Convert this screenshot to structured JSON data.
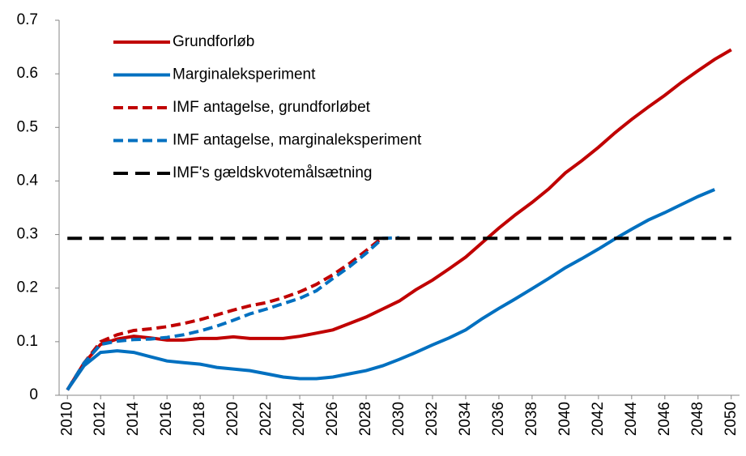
{
  "chart_data": {
    "type": "line",
    "x": [
      2010,
      2011,
      2012,
      2013,
      2014,
      2015,
      2016,
      2017,
      2018,
      2019,
      2020,
      2021,
      2022,
      2023,
      2024,
      2025,
      2026,
      2027,
      2028,
      2029,
      2030,
      2031,
      2032,
      2033,
      2034,
      2035,
      2036,
      2037,
      2038,
      2039,
      2040,
      2041,
      2042,
      2043,
      2044,
      2045,
      2046,
      2047,
      2048,
      2049,
      2050
    ],
    "series": [
      {
        "name": "Grundforløb",
        "color": "#c00000",
        "dashed": false,
        "values": [
          0.01,
          0.06,
          0.095,
          0.105,
          0.11,
          0.107,
          0.103,
          0.103,
          0.106,
          0.106,
          0.109,
          0.106,
          0.106,
          0.106,
          0.11,
          0.116,
          0.122,
          0.134,
          0.146,
          0.161,
          0.176,
          0.197,
          0.215,
          0.236,
          0.258,
          0.285,
          0.312,
          0.337,
          0.36,
          0.385,
          0.415,
          0.438,
          0.463,
          0.49,
          0.515,
          0.538,
          0.56,
          0.584,
          0.606,
          0.627,
          0.645
        ]
      },
      {
        "name": "Marginaleksperiment",
        "color": "#0070c0",
        "dashed": false,
        "values": [
          0.01,
          0.055,
          0.08,
          0.083,
          0.08,
          0.072,
          0.064,
          0.061,
          0.058,
          0.052,
          0.049,
          0.046,
          0.04,
          0.034,
          0.031,
          0.031,
          0.034,
          0.04,
          0.046,
          0.055,
          0.067,
          0.08,
          0.094,
          0.107,
          0.122,
          0.143,
          0.162,
          0.18,
          0.199,
          0.218,
          0.238,
          0.255,
          0.273,
          0.292,
          0.31,
          0.327,
          0.341,
          0.356,
          0.371,
          0.384,
          null
        ]
      },
      {
        "name": "IMF antagelse, grundforløbet",
        "color": "#c00000",
        "dashed": true,
        "values": [
          0.01,
          0.06,
          0.1,
          0.113,
          0.121,
          0.124,
          0.128,
          0.134,
          0.141,
          0.15,
          0.159,
          0.167,
          0.173,
          0.182,
          0.193,
          0.207,
          0.225,
          0.246,
          0.27,
          0.295,
          null,
          null,
          null,
          null,
          null,
          null,
          null,
          null,
          null,
          null,
          null,
          null,
          null,
          null,
          null,
          null,
          null,
          null,
          null,
          null,
          null
        ]
      },
      {
        "name": "IMF antagelse, marginaleksperiment",
        "color": "#0070c0",
        "dashed": true,
        "values": [
          0.01,
          0.06,
          0.095,
          0.101,
          0.104,
          0.105,
          0.108,
          0.113,
          0.12,
          0.129,
          0.14,
          0.152,
          0.161,
          0.171,
          0.181,
          0.195,
          0.218,
          0.24,
          0.265,
          0.293,
          0.294,
          null,
          null,
          null,
          null,
          null,
          null,
          null,
          null,
          null,
          null,
          null,
          null,
          null,
          null,
          null,
          null,
          null,
          null,
          null,
          null
        ]
      },
      {
        "name": "IMF's gældskvotemålsætning",
        "color": "#000000",
        "dashed": true,
        "values": [
          0.293,
          0.293,
          0.293,
          0.293,
          0.293,
          0.293,
          0.293,
          0.293,
          0.293,
          0.293,
          0.293,
          0.293,
          0.293,
          0.293,
          0.293,
          0.293,
          0.293,
          0.293,
          0.293,
          0.293,
          0.293,
          0.293,
          0.293,
          0.293,
          0.293,
          0.293,
          0.293,
          0.293,
          0.293,
          0.293,
          0.293,
          0.293,
          0.293,
          0.293,
          0.293,
          0.293,
          0.293,
          0.293,
          0.293,
          0.293,
          0.293
        ]
      }
    ],
    "xlim": [
      2009.5,
      2050.5
    ],
    "xticks": [
      2010,
      2012,
      2014,
      2016,
      2018,
      2020,
      2022,
      2024,
      2026,
      2028,
      2030,
      2032,
      2034,
      2036,
      2038,
      2040,
      2042,
      2044,
      2046,
      2048,
      2050
    ],
    "ylim": [
      0,
      0.7
    ],
    "yticks": [
      0,
      0.1,
      0.2,
      0.3,
      0.4,
      0.5,
      0.6,
      0.7
    ],
    "grid": false,
    "legend": "top-left"
  }
}
